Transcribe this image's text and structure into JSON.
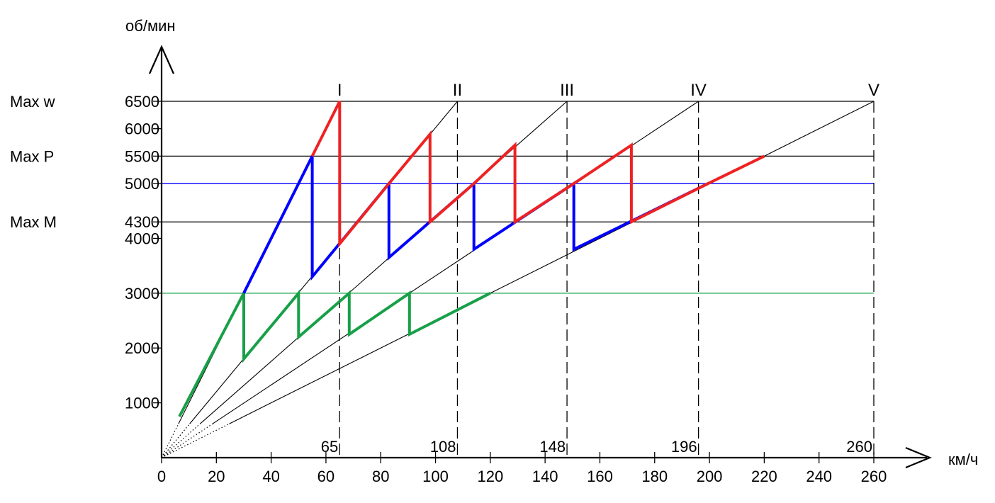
{
  "chart_data": {
    "type": "line",
    "xlabel": "км/ч",
    "ylabel": "об/мин",
    "xlim": [
      0,
      260
    ],
    "ylim": [
      0,
      6500
    ],
    "x_ticks": [
      "0",
      "20",
      "40",
      "60",
      "80",
      "100",
      "120",
      "140",
      "160",
      "180",
      "200",
      "220",
      "240",
      "260"
    ],
    "y_ticks": [
      {
        "value": 1000,
        "label": "1000"
      },
      {
        "value": 2000,
        "label": "2000"
      },
      {
        "value": 3000,
        "label": "3000"
      },
      {
        "value": 4000,
        "label": "4000"
      },
      {
        "value": 4300,
        "label": "4300"
      },
      {
        "value": 5000,
        "label": "5000"
      },
      {
        "value": 5500,
        "label": "5500"
      },
      {
        "value": 6000,
        "label": "6000"
      },
      {
        "value": 6500,
        "label": "6500"
      }
    ],
    "reference_lines": [
      {
        "label": "Max w",
        "y": 6500,
        "color": "#000000"
      },
      {
        "label": "Max P",
        "y": 5500,
        "color": "#000000"
      },
      {
        "label": "",
        "y": 5000,
        "color": "#0000ff"
      },
      {
        "label": "Max M",
        "y": 4300,
        "color": "#000000"
      },
      {
        "label": "",
        "y": 3000,
        "color": "#18a048"
      }
    ],
    "gears": [
      {
        "name": "I",
        "speed_at_max": 65,
        "speed_label": "65"
      },
      {
        "name": "II",
        "speed_at_max": 108,
        "speed_label": "108"
      },
      {
        "name": "III",
        "speed_at_max": 148,
        "speed_label": "148"
      },
      {
        "name": "IV",
        "speed_at_max": 196,
        "speed_label": "196"
      },
      {
        "name": "V",
        "speed_at_max": 260,
        "speed_label": "260"
      }
    ],
    "series": [
      {
        "color": "#18a048",
        "points": [
          [
            6.5,
            750
          ],
          [
            30,
            3000
          ],
          [
            30,
            1800
          ],
          [
            50,
            3000
          ],
          [
            50,
            2200
          ],
          [
            68.5,
            3000
          ],
          [
            68.5,
            2250
          ],
          [
            90.5,
            3000
          ],
          [
            90.5,
            2250
          ],
          [
            120,
            3000
          ]
        ]
      },
      {
        "color": "#0000ff",
        "points": [
          [
            30,
            3000
          ],
          [
            55,
            5500
          ],
          [
            55,
            3300
          ],
          [
            83,
            5000
          ],
          [
            83,
            3650
          ],
          [
            114,
            5000
          ],
          [
            114,
            3800
          ],
          [
            150.5,
            5000
          ],
          [
            150.5,
            3800
          ],
          [
            199.5,
            5000
          ]
        ]
      },
      {
        "color": "#ee2222",
        "points": [
          [
            55,
            5500
          ],
          [
            65,
            6500
          ],
          [
            65,
            3900
          ],
          [
            83,
            5000
          ],
          [
            98,
            5900
          ],
          [
            98,
            4300
          ],
          [
            114,
            5000
          ],
          [
            129,
            5700
          ],
          [
            129,
            4300
          ],
          [
            150.5,
            5000
          ],
          [
            171.5,
            5700
          ],
          [
            171.5,
            4300
          ],
          [
            199.5,
            5000
          ],
          [
            220,
            5500
          ]
        ]
      }
    ]
  }
}
